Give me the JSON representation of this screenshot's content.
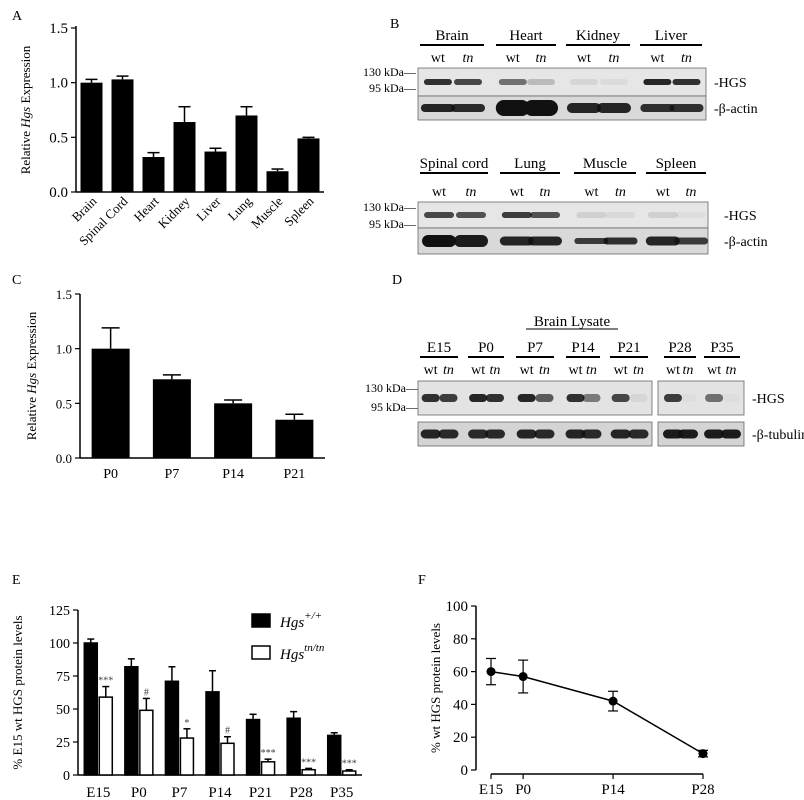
{
  "panels": {
    "A": {
      "letter": "A",
      "chart_data": {
        "type": "bar",
        "ylabel_prefix": "Relative ",
        "ylabel_italic": "Hgs",
        "ylabel_suffix": " Expression",
        "categories": [
          "Brain",
          "Spinal Cord",
          "Heart",
          "Kidney",
          "Liver",
          "Lung",
          "Muscle",
          "Spleen"
        ],
        "values": [
          1.0,
          1.03,
          0.32,
          0.64,
          0.37,
          0.7,
          0.19,
          0.49
        ],
        "errors": [
          0.03,
          0.03,
          0.04,
          0.14,
          0.03,
          0.08,
          0.02,
          0.01
        ],
        "ylim": [
          0,
          1.5
        ],
        "yticks": [
          "0.0",
          "0.5",
          "1.0",
          "1.5"
        ]
      }
    },
    "B": {
      "letter": "B",
      "top": {
        "groups": [
          "Brain",
          "Heart",
          "Kidney",
          "Liver"
        ],
        "genotypes": [
          "wt",
          "tn"
        ],
        "markers": [
          "130 kDa",
          "95 kDa"
        ],
        "band_labels": [
          "-HGS",
          "-β-actin"
        ]
      },
      "bottom": {
        "groups": [
          "Spinal cord",
          "Lung",
          "Muscle",
          "Spleen"
        ],
        "genotypes": [
          "wt",
          "tn"
        ],
        "markers": [
          "130 kDa",
          "95 kDa"
        ],
        "band_labels": [
          "-HGS",
          "-β-actin"
        ]
      }
    },
    "C": {
      "letter": "C",
      "chart_data": {
        "type": "bar",
        "ylabel_prefix": "Relative ",
        "ylabel_italic": "Hgs",
        "ylabel_suffix": " Expression",
        "categories": [
          "P0",
          "P7",
          "P14",
          "P21"
        ],
        "values": [
          1.0,
          0.72,
          0.5,
          0.35
        ],
        "errors": [
          0.19,
          0.04,
          0.03,
          0.05
        ],
        "ylim": [
          0,
          1.5
        ],
        "yticks": [
          "0.0",
          "0.5",
          "1.0",
          "1.5"
        ]
      }
    },
    "D": {
      "letter": "D",
      "title": "Brain Lysate",
      "groups": [
        "E15",
        "P0",
        "P7",
        "P14",
        "P21",
        "P28",
        "P35"
      ],
      "genotypes": [
        "wt",
        "tn"
      ],
      "markers": [
        "130 kDa",
        "95 kDa"
      ],
      "band_labels": [
        "-HGS",
        "-β-tubulin"
      ]
    },
    "E": {
      "letter": "E",
      "chart_data": {
        "type": "bar",
        "ylabel": "% E15 wt HGS protein levels",
        "categories": [
          "E15",
          "P0",
          "P7",
          "P14",
          "P21",
          "P28",
          "P35"
        ],
        "ylim": [
          0,
          125
        ],
        "yticks": [
          "0",
          "25",
          "50",
          "75",
          "100",
          "125"
        ],
        "series": [
          {
            "legend_italic": "Hgs",
            "legend_sup": "+/+",
            "fill": "#000000",
            "values": [
              100,
              82,
              71,
              63,
              42,
              43,
              30
            ],
            "errors": [
              3,
              6,
              11,
              16,
              4,
              5,
              2
            ]
          },
          {
            "legend_italic": "Hgs",
            "legend_sup": "tn/tn",
            "fill": "#ffffff",
            "values": [
              59,
              49,
              28,
              24,
              10,
              4,
              3
            ],
            "errors": [
              8,
              9,
              7,
              5,
              2,
              1,
              1
            ]
          }
        ],
        "significance": [
          "***",
          "#",
          "*",
          "#",
          "***",
          "***",
          "***"
        ]
      }
    },
    "F": {
      "letter": "F",
      "chart_data": {
        "type": "line",
        "ylabel": "% wt HGS protein levels",
        "x_labels": [
          "E15",
          "P0",
          "P14",
          "P28"
        ],
        "x_days": [
          -5,
          0,
          14,
          28
        ],
        "values": [
          60,
          57,
          42,
          10
        ],
        "errors": [
          8,
          10,
          6,
          2
        ],
        "ylim": [
          0,
          100
        ],
        "yticks": [
          "0",
          "20",
          "40",
          "60",
          "80",
          "100"
        ]
      }
    }
  }
}
